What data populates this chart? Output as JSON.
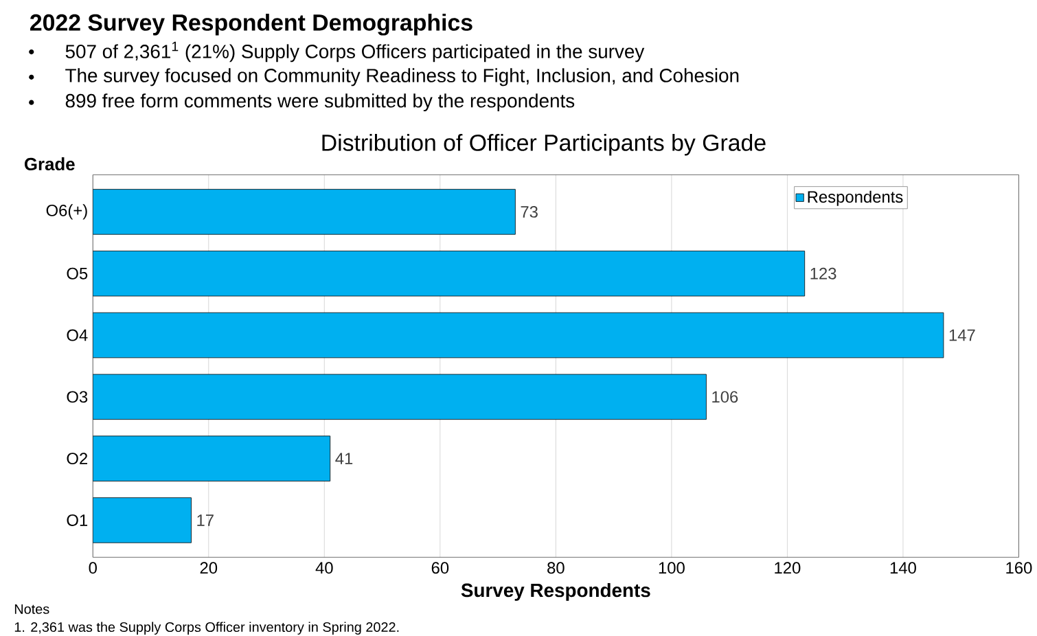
{
  "chart_data": {
    "type": "bar",
    "orientation": "horizontal",
    "title": "2022 Survey Respondent Demographics",
    "subtitle": "Distribution of Officer Participants by Grade",
    "ylabel": "Grade",
    "xlabel": "Survey Respondents",
    "annotations": [
      "507 of 2,361$^{1}$ (21%) Supply Corps Officers participated in the survey",
      "The survey focused on Community Readiness to Fight, Inclusion, and Cohesion",
      "899 free form comments were submitted by the respondents",
      "Notes",
      "1. 2,361 was the Supply Corps Officer inventory in Spring 2022."
    ],
    "categories": [
      "O6(+)",
      "O5",
      "O4",
      "O3",
      "O2",
      "O1"
    ],
    "series": [
      {
        "name": "Respondents",
        "color": "#00b0f0",
        "values": [
          73,
          123,
          147,
          106,
          41,
          17
        ]
      }
    ],
    "xlim": [
      0,
      160
    ],
    "xticks": [
      0,
      20,
      40,
      60,
      80,
      100,
      120,
      140,
      160
    ],
    "grid": "x",
    "legend": "top right",
    "data_labels": true
  }
}
